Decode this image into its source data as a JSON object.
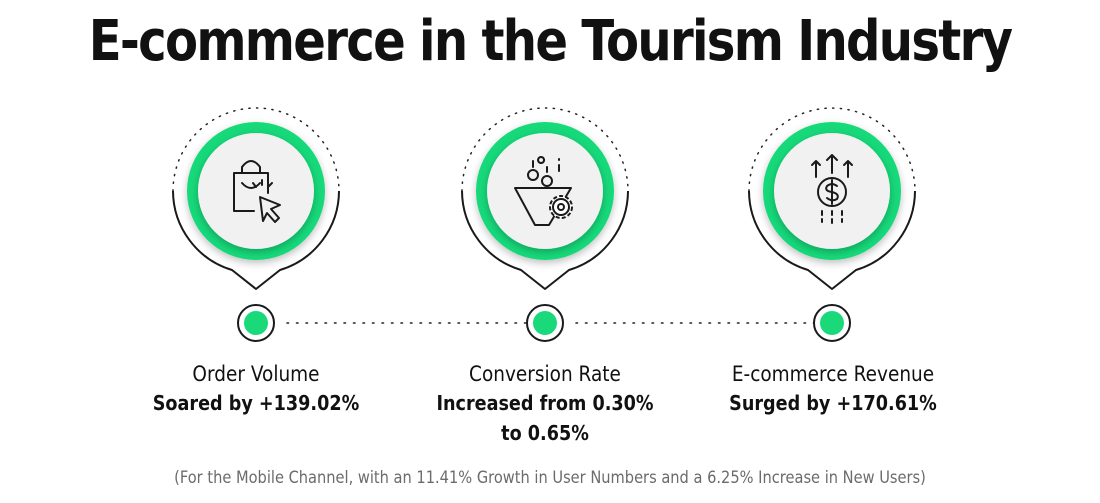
{
  "title": "E-commerce in the Tourism Industry",
  "colors": {
    "accent": "#19d97a",
    "ring_shadow": "#cfcfcf",
    "outline": "#1a1a1a",
    "footnote": "#6b6b6b"
  },
  "metrics": [
    {
      "icon": "shopping-bag-cursor-icon",
      "name": "Order Volume",
      "value_lines": [
        "Soared by +139.02%"
      ]
    },
    {
      "icon": "conversion-funnel-gear-icon",
      "name": "Conversion Rate",
      "value_lines": [
        "Increased from 0.30%",
        "to 0.65%"
      ]
    },
    {
      "icon": "dollar-growth-arrows-icon",
      "name": "E-commerce Revenue",
      "value_lines": [
        "Surged by +170.61%"
      ]
    }
  ],
  "footnote": "(For the Mobile Channel, with an 11.41% Growth in User Numbers and a 6.25% Increase in New Users)"
}
